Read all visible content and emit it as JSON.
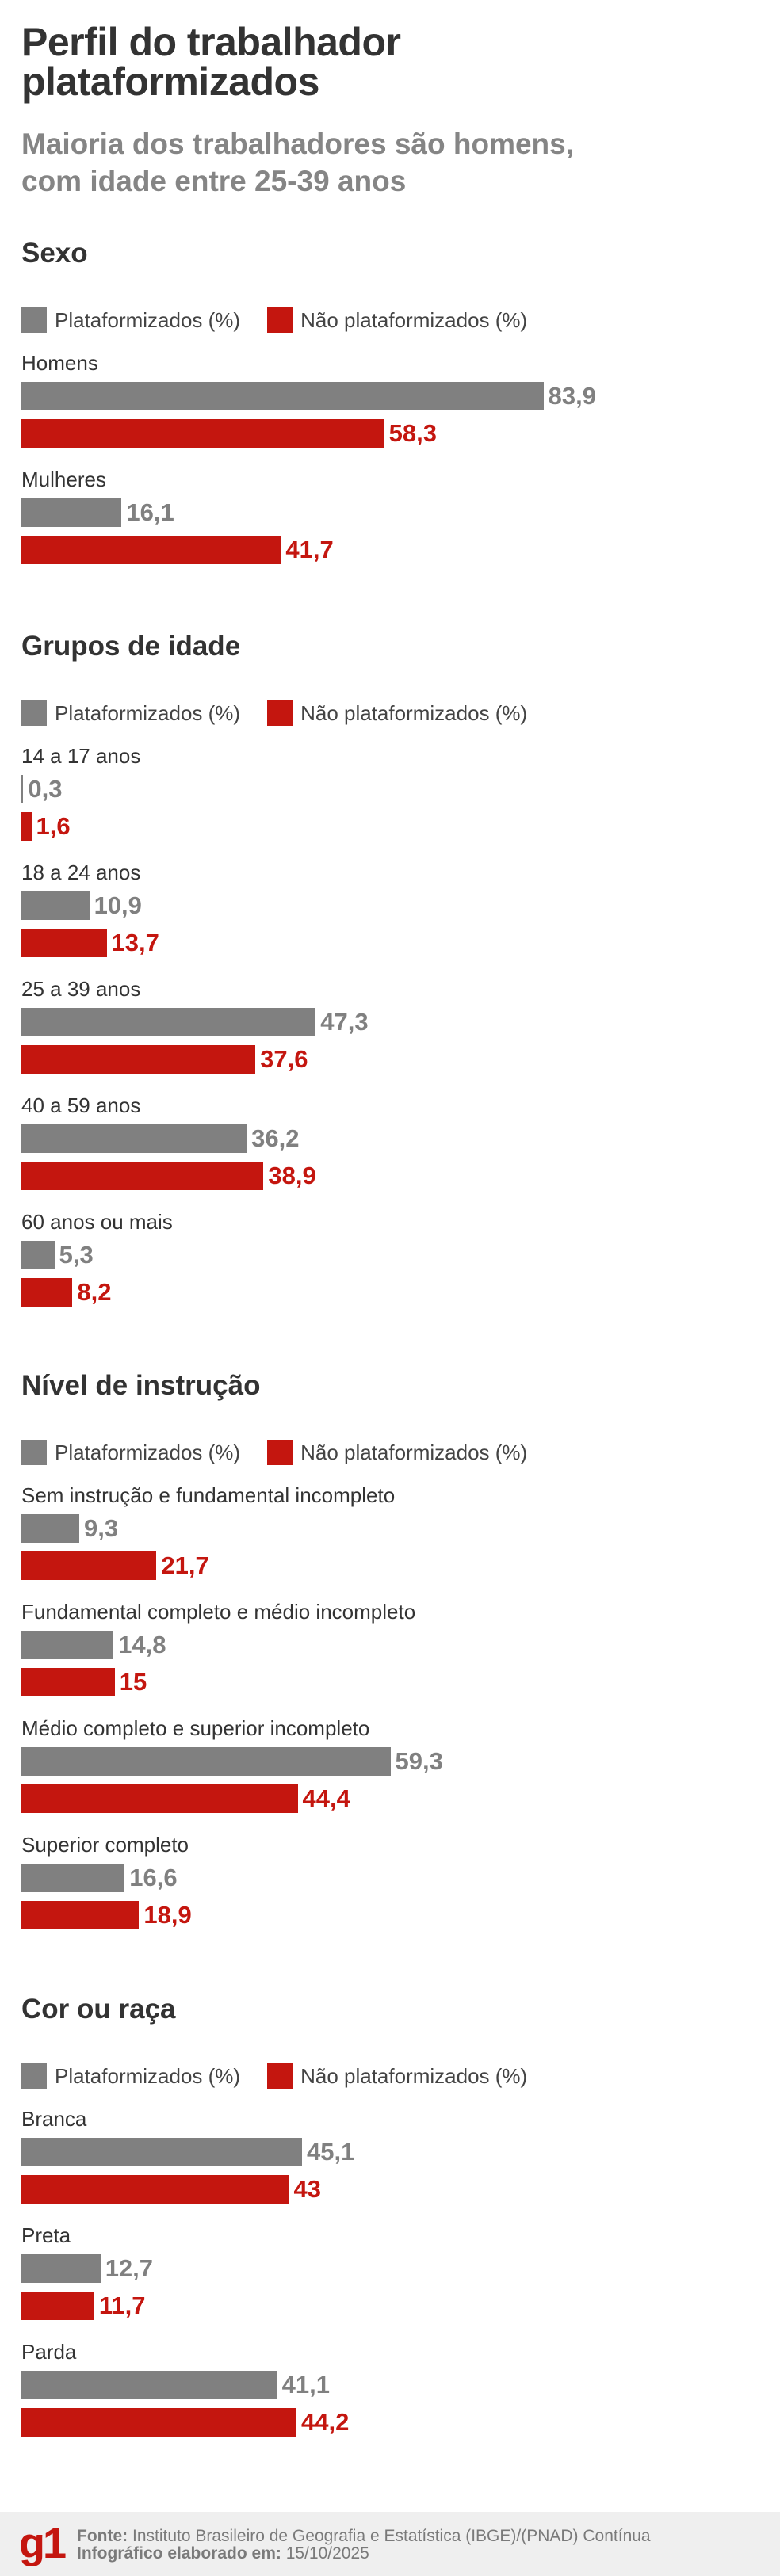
{
  "title": [
    "Perfil do trabalhador",
    "plataformizados"
  ],
  "subtitle": [
    "Maioria dos trabalhadores são homens,",
    "com idade entre 25-39 anos"
  ],
  "colors": {
    "plataformizados": "#808080",
    "nao_plataformizados": "#c4160f"
  },
  "legend": [
    "Plataformizados (%)",
    "Não plataformizados (%)"
  ],
  "chart_data": [
    {
      "type": "bar",
      "orientation": "horizontal",
      "title": "Sexo",
      "categories": [
        "Homens",
        "Mulheres"
      ],
      "series": [
        {
          "name": "Plataformizados (%)",
          "values": [
            "83,9",
            "16,1"
          ]
        },
        {
          "name": "Não plataformizados (%)",
          "values": [
            "58,3",
            "41,7"
          ]
        }
      ]
    },
    {
      "type": "bar",
      "orientation": "horizontal",
      "title": "Grupos de idade",
      "categories": [
        "14 a 17 anos",
        "18 a 24 anos",
        "25 a 39 anos",
        "40 a 59 anos",
        "60 anos ou mais"
      ],
      "series": [
        {
          "name": "Plataformizados (%)",
          "values": [
            "0,3",
            "10,9",
            "47,3",
            "36,2",
            "5,3"
          ]
        },
        {
          "name": "Não plataformizados (%)",
          "values": [
            "1,6",
            "13,7",
            "37,6",
            "38,9",
            "8,2"
          ]
        }
      ]
    },
    {
      "type": "bar",
      "orientation": "horizontal",
      "title": "Nível de instrução",
      "categories": [
        "Sem instrução e fundamental incompleto",
        "Fundamental completo e médio incompleto",
        "Médio completo e superior incompleto",
        "Superior completo"
      ],
      "series": [
        {
          "name": "Plataformizados (%)",
          "values": [
            "9,3",
            "14,8",
            "59,3",
            "16,6"
          ]
        },
        {
          "name": "Não plataformizados (%)",
          "values": [
            "21,7",
            "15",
            "44,4",
            "18,9"
          ]
        }
      ]
    },
    {
      "type": "bar",
      "orientation": "horizontal",
      "title": "Cor ou raça",
      "categories": [
        "Branca",
        "Preta",
        "Parda"
      ],
      "series": [
        {
          "name": "Plataformizados (%)",
          "values": [
            "45,1",
            "12,7",
            "41,1"
          ]
        },
        {
          "name": "Não plataformizados (%)",
          "values": [
            "43",
            "11,7",
            "44,2"
          ]
        }
      ]
    }
  ],
  "footer": {
    "logo": "g1",
    "source_label": "Fonte:",
    "source": "Instituto Brasileiro de Geografia e Estatística (IBGE)/(PNAD) Contínua",
    "date_label": "Infográfico elaborado em:",
    "date": "15/10/2025"
  }
}
